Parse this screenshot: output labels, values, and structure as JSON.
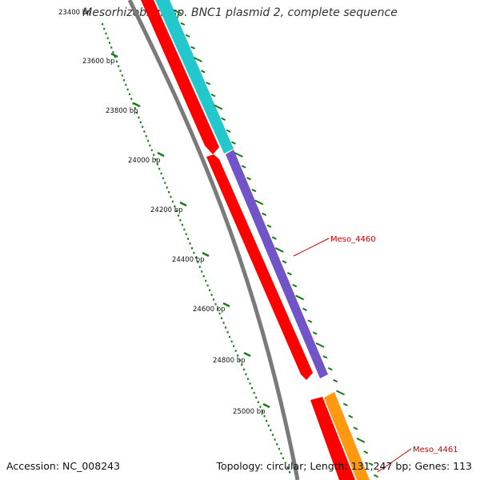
{
  "title": "Mesorhizobium sp. BNC1 plasmid 2, complete sequence",
  "footer": {
    "accession": "Accession: NC_008243",
    "summary": "Topology: circular; Length: 131,247 bp; Genes: 113"
  },
  "ruler_labels": [
    "23400 bp",
    "23600 bp",
    "23800 bp",
    "24000 bp",
    "24200 bp",
    "24400 bp",
    "24600 bp",
    "24800 bp",
    "25000 bp"
  ],
  "gene_labels": [
    "Meso_4460",
    "Meso_4461"
  ],
  "colors": {
    "backbone": "#7a7a7a",
    "forward_red": "#ff0000",
    "cyan": "#22c8cc",
    "purple": "#7054c8",
    "orange": "#ff9a10",
    "tick_green": "#1a7a1a",
    "label_red": "#cc0000"
  }
}
